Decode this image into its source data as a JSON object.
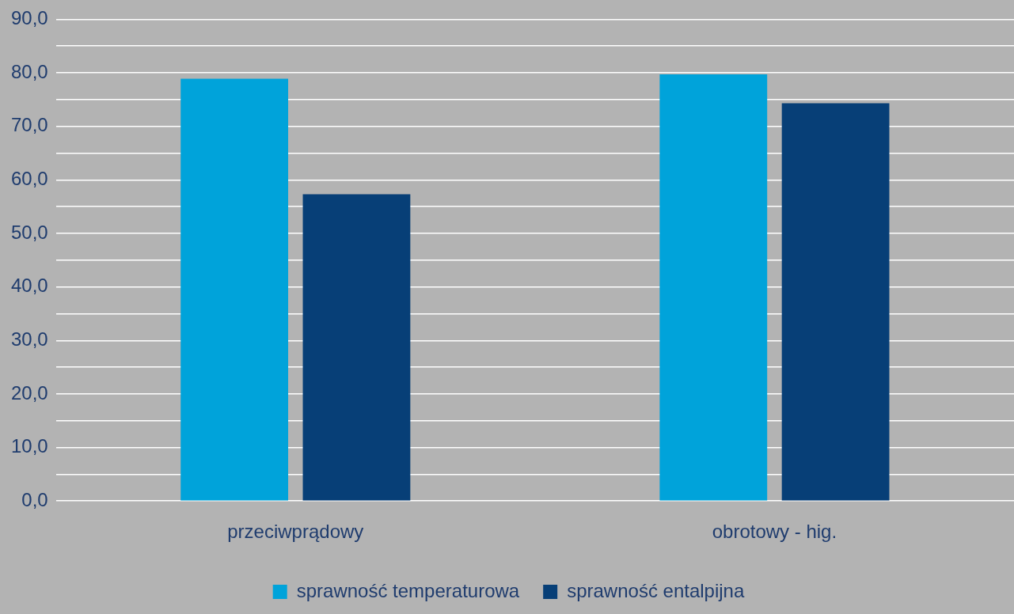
{
  "chart_data": {
    "type": "bar",
    "categories": [
      "przeciwprądowy",
      "obrotowy - hig."
    ],
    "series": [
      {
        "name": "sprawność temperaturowa",
        "color": "#00a3da",
        "values": [
          78.9,
          79.7
        ]
      },
      {
        "name": "sprawność entalpijna",
        "color": "#073f77",
        "values": [
          57.3,
          74.3
        ]
      }
    ],
    "ylim": [
      0,
      90
    ],
    "yticks": [
      {
        "value": 0,
        "label": "0,0"
      },
      {
        "value": 5,
        "label": null
      },
      {
        "value": 10,
        "label": "10,0"
      },
      {
        "value": 15,
        "label": null
      },
      {
        "value": 20,
        "label": "20,0"
      },
      {
        "value": 25,
        "label": null
      },
      {
        "value": 30,
        "label": "30,0"
      },
      {
        "value": 35,
        "label": null
      },
      {
        "value": 40,
        "label": "40,0"
      },
      {
        "value": 45,
        "label": null
      },
      {
        "value": 50,
        "label": "50,0"
      },
      {
        "value": 55,
        "label": null
      },
      {
        "value": 60,
        "label": "60,0"
      },
      {
        "value": 65,
        "label": null
      },
      {
        "value": 70,
        "label": "70,0"
      },
      {
        "value": 75,
        "label": null
      },
      {
        "value": 80,
        "label": "80,0"
      },
      {
        "value": 85,
        "label": null
      },
      {
        "value": 90,
        "label": "90,0"
      }
    ],
    "grid": "y",
    "legend": "bottom"
  }
}
